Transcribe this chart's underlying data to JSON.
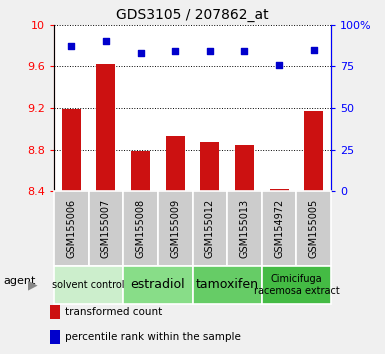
{
  "title": "GDS3105 / 207862_at",
  "samples": [
    "GSM155006",
    "GSM155007",
    "GSM155008",
    "GSM155009",
    "GSM155012",
    "GSM155013",
    "GSM154972",
    "GSM155005"
  ],
  "bar_values": [
    9.19,
    9.62,
    8.79,
    8.93,
    8.87,
    8.84,
    8.42,
    9.17
  ],
  "scatter_values": [
    87,
    90,
    83,
    84,
    84,
    84,
    76,
    85
  ],
  "ylim_left": [
    8.4,
    10.0
  ],
  "ylim_right": [
    0,
    100
  ],
  "yticks_left": [
    8.4,
    8.8,
    9.2,
    9.6,
    10.0
  ],
  "yticks_right": [
    0,
    25,
    50,
    75,
    100
  ],
  "bar_color": "#cc1111",
  "scatter_color": "#0000cc",
  "groups": [
    {
      "label": "solvent control",
      "indices": [
        0,
        1
      ],
      "color": "#cceecc",
      "fontsize": 7
    },
    {
      "label": "estradiol",
      "indices": [
        2,
        3
      ],
      "color": "#88dd88",
      "fontsize": 9
    },
    {
      "label": "tamoxifen",
      "indices": [
        4,
        5
      ],
      "color": "#66cc66",
      "fontsize": 9
    },
    {
      "label": "Cimicifuga\nracemosa extract",
      "indices": [
        6,
        7
      ],
      "color": "#44bb44",
      "fontsize": 7
    }
  ],
  "legend_bar_label": "transformed count",
  "legend_scatter_label": "percentile rank within the sample",
  "fig_bg": "#f0f0f0",
  "plot_bg": "#ffffff",
  "sample_box_color": "#cccccc"
}
